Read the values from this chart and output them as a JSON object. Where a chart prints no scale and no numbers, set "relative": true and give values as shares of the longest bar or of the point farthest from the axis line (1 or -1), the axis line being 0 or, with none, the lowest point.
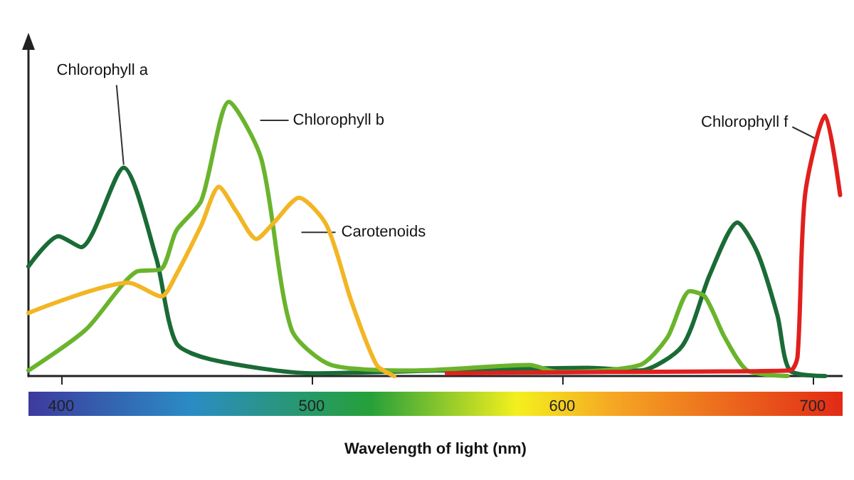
{
  "chart_data": {
    "type": "line",
    "relative": true,
    "xlabel": "Wavelength of light (nm)",
    "xlim": [
      387,
      712
    ],
    "xticks": [
      400,
      500,
      600,
      700
    ],
    "series": [
      {
        "name": "Chlorophyll a",
        "color": "#1a6b35",
        "x": [
          387,
          399,
          408,
          425,
          438,
          446,
          460,
          500,
          550,
          610,
          631,
          648,
          659,
          670,
          678,
          686,
          691,
          705
        ],
        "values": [
          0.4,
          0.51,
          0.47,
          0.76,
          0.43,
          0.12,
          0.06,
          0.01,
          0.02,
          0.03,
          0.02,
          0.11,
          0.37,
          0.56,
          0.45,
          0.22,
          0.02,
          0
        ]
      },
      {
        "name": "Chlorophyll b",
        "color": "#6ab42d",
        "x": [
          387,
          410,
          430,
          440,
          446,
          456,
          467,
          480,
          492,
          508,
          540,
          587,
          598,
          631,
          642,
          651,
          657,
          665,
          674,
          690
        ],
        "values": [
          0.02,
          0.17,
          0.38,
          0.39,
          0.53,
          0.64,
          1.0,
          0.79,
          0.17,
          0.04,
          0.02,
          0.04,
          0.015,
          0.04,
          0.14,
          0.31,
          0.29,
          0.14,
          0.02,
          0
        ]
      },
      {
        "name": "Carotenoids",
        "color": "#f2b625",
        "x": [
          387,
          427,
          440,
          446,
          456,
          463,
          470,
          478,
          485,
          495,
          506,
          516,
          526,
          533
        ],
        "values": [
          0.23,
          0.34,
          0.29,
          0.37,
          0.55,
          0.69,
          0.6,
          0.5,
          0.56,
          0.65,
          0.55,
          0.27,
          0.04,
          0
        ]
      },
      {
        "name": "Chlorophyll f",
        "color": "#e0201e",
        "x": [
          554,
          620,
          691,
          694,
          697,
          705,
          711
        ],
        "values": [
          0.01,
          0.015,
          0.02,
          0.07,
          0.66,
          0.95,
          0.66
        ]
      }
    ]
  }
}
